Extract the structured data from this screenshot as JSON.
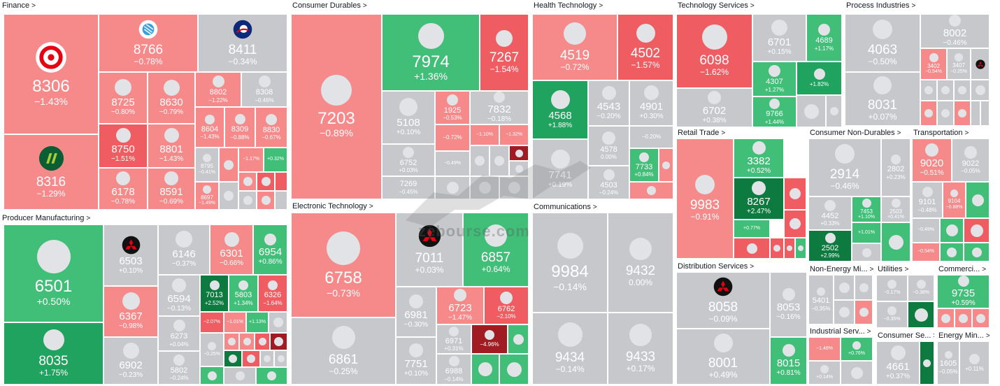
{
  "colors": {
    "neutral": "#c7c8cc",
    "up_light": "#41bf79",
    "up_mid": "#20a35e",
    "up_dark": "#0d7a40",
    "down_light": "#f68a8b",
    "down_mid": "#ef5d63",
    "down_dark": "#a01c22",
    "logo_circle": "#e1e3e6"
  },
  "sectors": [
    {
      "name": "Finance",
      "id": "finance"
    },
    {
      "name": "Producer Manufacturing",
      "id": "producer-manufacturing"
    },
    {
      "name": "Consumer Durables",
      "id": "consumer-durables"
    },
    {
      "name": "Electronic Technology",
      "id": "electronic-technology"
    },
    {
      "name": "Health Technology",
      "id": "health-technology"
    },
    {
      "name": "Communications",
      "id": "communications"
    },
    {
      "name": "Technology Services",
      "id": "technology-services"
    },
    {
      "name": "Retail Trade",
      "id": "retail-trade"
    },
    {
      "name": "Distribution Services",
      "id": "distribution-services"
    },
    {
      "name": "Process Industries",
      "id": "process-industries"
    },
    {
      "name": "Consumer Non-Durables",
      "id": "consumer-non-durables"
    },
    {
      "name": "Transportation",
      "id": "transportation"
    },
    {
      "name": "Non-Energy Mi...",
      "id": "non-energy-minerals"
    },
    {
      "name": "Utilities",
      "id": "utilities"
    },
    {
      "name": "Commerci...",
      "id": "commercial-services"
    },
    {
      "name": "Industrial Serv...",
      "id": "industrial-services"
    },
    {
      "name": "Consumer Se...",
      "id": "consumer-services"
    },
    {
      "name": "Energy Min...",
      "id": "energy-minerals"
    }
  ],
  "tickers": [
    {
      "ticker": "8306",
      "change": "−1.43%",
      "color": "down_light"
    },
    {
      "ticker": "8316",
      "change": "−1.29%",
      "color": "down_light"
    },
    {
      "ticker": "8766",
      "change": "−0.78%",
      "color": "down_light"
    },
    {
      "ticker": "8411",
      "change": "−0.34%",
      "color": "neutral"
    },
    {
      "ticker": "8725",
      "change": "−0.80%",
      "color": "down_light"
    },
    {
      "ticker": "8630",
      "change": "−0.79%",
      "color": "down_light"
    },
    {
      "ticker": "8802",
      "change": "−1.22%",
      "color": "down_light"
    },
    {
      "ticker": "8308",
      "change": "−0.46%",
      "color": "neutral"
    },
    {
      "ticker": "8750",
      "change": "−1.51%",
      "color": "down_mid"
    },
    {
      "ticker": "8801",
      "change": "−1.43%",
      "color": "down_light"
    },
    {
      "ticker": "8604",
      "change": "−1.43%",
      "color": "down_light"
    },
    {
      "ticker": "8309",
      "change": "−0.88%",
      "color": "down_light"
    },
    {
      "ticker": "8830",
      "change": "−0.67%",
      "color": "down_light"
    },
    {
      "ticker": "6178",
      "change": "−0.78%",
      "color": "down_light"
    },
    {
      "ticker": "8591",
      "change": "−0.69%",
      "color": "down_light"
    },
    {
      "ticker": "8795",
      "change": "−0.41%",
      "color": "neutral"
    },
    {
      "ticker": "8697",
      "change": "−1.49%",
      "color": "down_light"
    },
    {
      "ticker": "",
      "change": "−1.17%",
      "color": "down_light"
    },
    {
      "ticker": "",
      "change": "+0.32%",
      "color": "up_light"
    },
    {
      "ticker": "6501",
      "change": "+0.50%",
      "color": "up_light"
    },
    {
      "ticker": "8035",
      "change": "+1.75%",
      "color": "up_mid"
    },
    {
      "ticker": "6503",
      "change": "+0.10%",
      "color": "neutral"
    },
    {
      "ticker": "6367",
      "change": "−0.98%",
      "color": "down_light"
    },
    {
      "ticker": "6902",
      "change": "−0.23%",
      "color": "neutral"
    },
    {
      "ticker": "6146",
      "change": "−0.37%",
      "color": "neutral"
    },
    {
      "ticker": "6301",
      "change": "−0.66%",
      "color": "down_light"
    },
    {
      "ticker": "6954",
      "change": "+0.86%",
      "color": "up_light"
    },
    {
      "ticker": "6594",
      "change": "−0.13%",
      "color": "neutral"
    },
    {
      "ticker": "7013",
      "change": "+2.52%",
      "color": "up_dark"
    },
    {
      "ticker": "5803",
      "change": "+1.34%",
      "color": "up_light"
    },
    {
      "ticker": "6326",
      "change": "−1.64%",
      "color": "down_mid"
    },
    {
      "ticker": "6273",
      "change": "+0.04%",
      "color": "neutral"
    },
    {
      "ticker": "",
      "change": "−2.07%",
      "color": "down_mid"
    },
    {
      "ticker": "",
      "change": "−1.01%",
      "color": "down_light"
    },
    {
      "ticker": "",
      "change": "+1.13%",
      "color": "up_light"
    },
    {
      "ticker": "5802",
      "change": "−0.24%",
      "color": "neutral"
    },
    {
      "ticker": "",
      "change": "−0.25%",
      "color": "neutral"
    },
    {
      "ticker": "7203",
      "change": "−0.89%",
      "color": "down_light"
    },
    {
      "ticker": "7974",
      "change": "+1.36%",
      "color": "up_light"
    },
    {
      "ticker": "7267",
      "change": "−1.54%",
      "color": "down_mid"
    },
    {
      "ticker": "5108",
      "change": "+0.10%",
      "color": "neutral"
    },
    {
      "ticker": "1925",
      "change": "−0.53%",
      "color": "down_light"
    },
    {
      "ticker": "7832",
      "change": "−0.18%",
      "color": "neutral"
    },
    {
      "ticker": "6752",
      "change": "+0.03%",
      "color": "neutral"
    },
    {
      "ticker": "",
      "change": "−0.72%",
      "color": "down_light"
    },
    {
      "ticker": "",
      "change": "−1.10%",
      "color": "down_light"
    },
    {
      "ticker": "",
      "change": "−1.32%",
      "color": "down_light"
    },
    {
      "ticker": "",
      "change": "−0.49%",
      "color": "neutral"
    },
    {
      "ticker": "7269",
      "change": "−0.45%",
      "color": "neutral"
    },
    {
      "ticker": "6758",
      "change": "−0.73%",
      "color": "down_light"
    },
    {
      "ticker": "7011",
      "change": "+0.03%",
      "color": "neutral"
    },
    {
      "ticker": "6857",
      "change": "+0.64%",
      "color": "up_light"
    },
    {
      "ticker": "6723",
      "change": "−1.47%",
      "color": "down_light"
    },
    {
      "ticker": "6762",
      "change": "−2.10%",
      "color": "down_mid"
    },
    {
      "ticker": "6981",
      "change": "−0.30%",
      "color": "neutral"
    },
    {
      "ticker": "6971",
      "change": "+0.31%",
      "color": "neutral"
    },
    {
      "ticker": "",
      "change": "−4.96%",
      "color": "down_dark"
    },
    {
      "ticker": "6861",
      "change": "−0.25%",
      "color": "neutral"
    },
    {
      "ticker": "7751",
      "change": "+0.10%",
      "color": "neutral"
    },
    {
      "ticker": "6988",
      "change": "−0.14%",
      "color": "neutral"
    },
    {
      "ticker": "4519",
      "change": "−0.72%",
      "color": "down_light"
    },
    {
      "ticker": "4502",
      "change": "−1.57%",
      "color": "down_mid"
    },
    {
      "ticker": "4568",
      "change": "+1.88%",
      "color": "up_mid"
    },
    {
      "ticker": "4543",
      "change": "−0.20%",
      "color": "neutral"
    },
    {
      "ticker": "4901",
      "change": "+0.30%",
      "color": "neutral"
    },
    {
      "ticker": "4578",
      "change": "0.00%",
      "color": "neutral"
    },
    {
      "ticker": "",
      "change": "−0.20%",
      "color": "neutral"
    },
    {
      "ticker": "7741",
      "change": "+0.19%",
      "color": "neutral"
    },
    {
      "ticker": "7733",
      "change": "+0.84%",
      "color": "up_light"
    },
    {
      "ticker": "4503",
      "change": "−0.24%",
      "color": "neutral"
    },
    {
      "ticker": "9984",
      "change": "−0.14%",
      "color": "neutral"
    },
    {
      "ticker": "9432",
      "change": "0.00%",
      "color": "neutral"
    },
    {
      "ticker": "9434",
      "change": "−0.14%",
      "color": "neutral"
    },
    {
      "ticker": "9433",
      "change": "+0.17%",
      "color": "neutral"
    },
    {
      "ticker": "6098",
      "change": "−1.62%",
      "color": "down_mid"
    },
    {
      "ticker": "6701",
      "change": "+0.15%",
      "color": "neutral"
    },
    {
      "ticker": "4689",
      "change": "+1.17%",
      "color": "up_light"
    },
    {
      "ticker": "4307",
      "change": "+1.27%",
      "color": "up_light"
    },
    {
      "ticker": "",
      "change": "+1.82%",
      "color": "up_mid"
    },
    {
      "ticker": "6702",
      "change": "+0.38%",
      "color": "neutral"
    },
    {
      "ticker": "9766",
      "change": "+1.44%",
      "color": "up_light"
    },
    {
      "ticker": "9983",
      "change": "−0.91%",
      "color": "down_light"
    },
    {
      "ticker": "3382",
      "change": "+0.52%",
      "color": "up_light"
    },
    {
      "ticker": "8267",
      "change": "+2.47%",
      "color": "up_dark"
    },
    {
      "ticker": "",
      "change": "+0.77%",
      "color": "up_light"
    },
    {
      "ticker": "8058",
      "change": "−0.09%",
      "color": "neutral"
    },
    {
      "ticker": "8053",
      "change": "−0.16%",
      "color": "neutral"
    },
    {
      "ticker": "8001",
      "change": "+0.49%",
      "color": "neutral"
    },
    {
      "ticker": "8015",
      "change": "+0.81%",
      "color": "up_light"
    },
    {
      "ticker": "4063",
      "change": "−0.50%",
      "color": "neutral"
    },
    {
      "ticker": "8002",
      "change": "−0.46%",
      "color": "neutral"
    },
    {
      "ticker": "3402",
      "change": "−0.54%",
      "color": "down_light"
    },
    {
      "ticker": "3407",
      "change": "−0.25%",
      "color": "neutral"
    },
    {
      "ticker": "8031",
      "change": "+0.07%",
      "color": "neutral"
    },
    {
      "ticker": "2914",
      "change": "−0.46%",
      "color": "neutral"
    },
    {
      "ticker": "2802",
      "change": "+0.23%",
      "color": "neutral"
    },
    {
      "ticker": "4452",
      "change": "+0.33%",
      "color": "neutral"
    },
    {
      "ticker": "7453",
      "change": "+1.10%",
      "color": "up_light"
    },
    {
      "ticker": "2503",
      "change": "+0.41%",
      "color": "neutral"
    },
    {
      "ticker": "",
      "change": "+1.01%",
      "color": "up_light"
    },
    {
      "ticker": "2502",
      "change": "+2.99%",
      "color": "up_dark"
    },
    {
      "ticker": "9020",
      "change": "−0.51%",
      "color": "down_light"
    },
    {
      "ticker": "9022",
      "change": "−0.05%",
      "color": "neutral"
    },
    {
      "ticker": "9101",
      "change": "−0.48%",
      "color": "neutral"
    },
    {
      "ticker": "9104",
      "change": "−0.88%",
      "color": "down_light"
    },
    {
      "ticker": "",
      "change": "−0.49%",
      "color": "neutral"
    },
    {
      "ticker": "",
      "change": "−0.54%",
      "color": "down_light"
    },
    {
      "ticker": "5401",
      "change": "−0.35%",
      "color": "neutral"
    },
    {
      "ticker": "",
      "change": "−0.17%",
      "color": "neutral"
    },
    {
      "ticker": "",
      "change": "−0.38%",
      "color": "neutral"
    },
    {
      "ticker": "",
      "change": "−0.35%",
      "color": "neutral"
    },
    {
      "ticker": "9735",
      "change": "+0.59%",
      "color": "up_light"
    },
    {
      "ticker": "",
      "change": "−1.48%",
      "color": "down_light"
    },
    {
      "ticker": "",
      "change": "+0.76%",
      "color": "up_light"
    },
    {
      "ticker": "",
      "change": "+0.14%",
      "color": "neutral"
    },
    {
      "ticker": "4661",
      "change": "+0.37%",
      "color": "neutral"
    },
    {
      "ticker": "1605",
      "change": "−0.05%",
      "color": "neutral"
    },
    {
      "ticker": "",
      "change": "+0.11%",
      "color": "neutral"
    }
  ],
  "watermark": {
    "text": "zebourse.com"
  }
}
